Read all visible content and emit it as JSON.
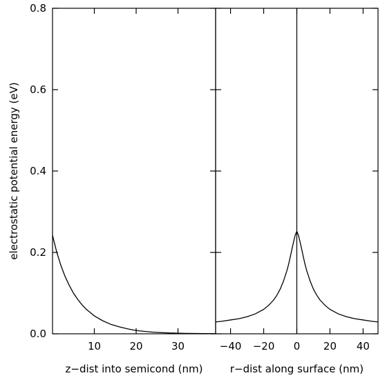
{
  "chart_data": [
    {
      "type": "line",
      "xlabel": "z−dist into semicond (nm)",
      "ylabel": "electrostatic potential energy (eV)",
      "xlim": [
        0,
        39
      ],
      "ylim": [
        0,
        0.8
      ],
      "xticks": [
        10,
        20,
        30
      ],
      "xtick_labels": [
        "10",
        "20",
        "30"
      ],
      "yticks": [
        0,
        0.2,
        0.4,
        0.6,
        0.8
      ],
      "ytick_labels": [
        "0.0",
        "0.2",
        "0.4",
        "0.6",
        "0.8"
      ],
      "series": [
        {
          "x": [
            0,
            1,
            2,
            3,
            4,
            5,
            6,
            7,
            8,
            10,
            12,
            14,
            16,
            18,
            20,
            22,
            24,
            26,
            28,
            30,
            32,
            34,
            36,
            39
          ],
          "y": [
            0.242,
            0.201,
            0.168,
            0.141,
            0.119,
            0.1,
            0.085,
            0.072,
            0.061,
            0.044,
            0.032,
            0.023,
            0.017,
            0.012,
            0.008,
            0.006,
            0.004,
            0.003,
            0.002,
            0.0015,
            0.001,
            0.0008,
            0.0005,
            0.0003
          ]
        }
      ]
    },
    {
      "type": "line",
      "xlabel": "r−dist along surface (nm)",
      "xlim": [
        -49,
        49
      ],
      "ylim": [
        0,
        0.8
      ],
      "xticks": [
        -40,
        -20,
        0,
        20,
        40
      ],
      "xtick_labels": [
        "−40",
        "−20",
        "0",
        "20",
        "40"
      ],
      "vline_x": 0,
      "series": [
        {
          "x": [
            -49,
            -45,
            -40,
            -35,
            -30,
            -25,
            -20,
            -17,
            -14,
            -12,
            -10,
            -8,
            -6,
            -5,
            -4,
            -3,
            -2,
            -1,
            0,
            1,
            2,
            3,
            4,
            5,
            6,
            8,
            10,
            12,
            14,
            17,
            20,
            25,
            30,
            35,
            40,
            45,
            49
          ],
          "y": [
            0.029,
            0.031,
            0.034,
            0.037,
            0.042,
            0.049,
            0.06,
            0.07,
            0.083,
            0.095,
            0.11,
            0.13,
            0.155,
            0.17,
            0.188,
            0.207,
            0.225,
            0.242,
            0.252,
            0.242,
            0.225,
            0.207,
            0.188,
            0.17,
            0.155,
            0.13,
            0.11,
            0.095,
            0.083,
            0.07,
            0.06,
            0.049,
            0.042,
            0.037,
            0.034,
            0.031,
            0.029
          ]
        }
      ]
    }
  ]
}
